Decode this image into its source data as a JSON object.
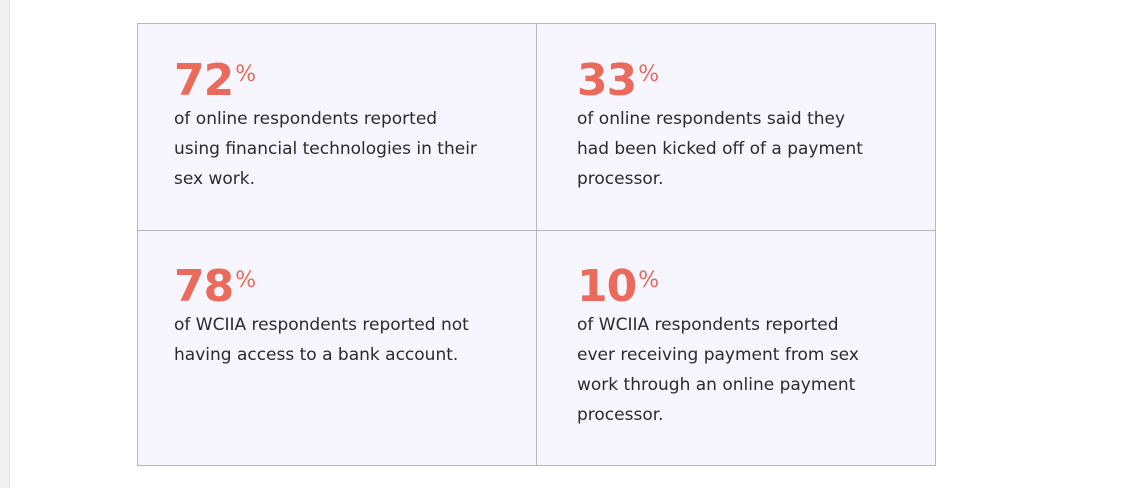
{
  "stats": [
    {
      "value": 72,
      "unit": "%",
      "lines": [
        "of online respondents reported",
        "using financial technologies in their",
        "sex work."
      ]
    },
    {
      "value": 33,
      "unit": "%",
      "lines": [
        "of online respondents said they",
        "had been kicked off of a payment",
        "processor."
      ]
    },
    {
      "value": 78,
      "unit": "%",
      "lines": [
        "of WCIIA respondents reported not",
        "having access to a bank account."
      ]
    },
    {
      "value": 10,
      "unit": "%",
      "lines": [
        "of WCIIA respondents reported",
        "ever receiving payment from sex",
        "work through an online payment",
        "processor."
      ]
    }
  ]
}
